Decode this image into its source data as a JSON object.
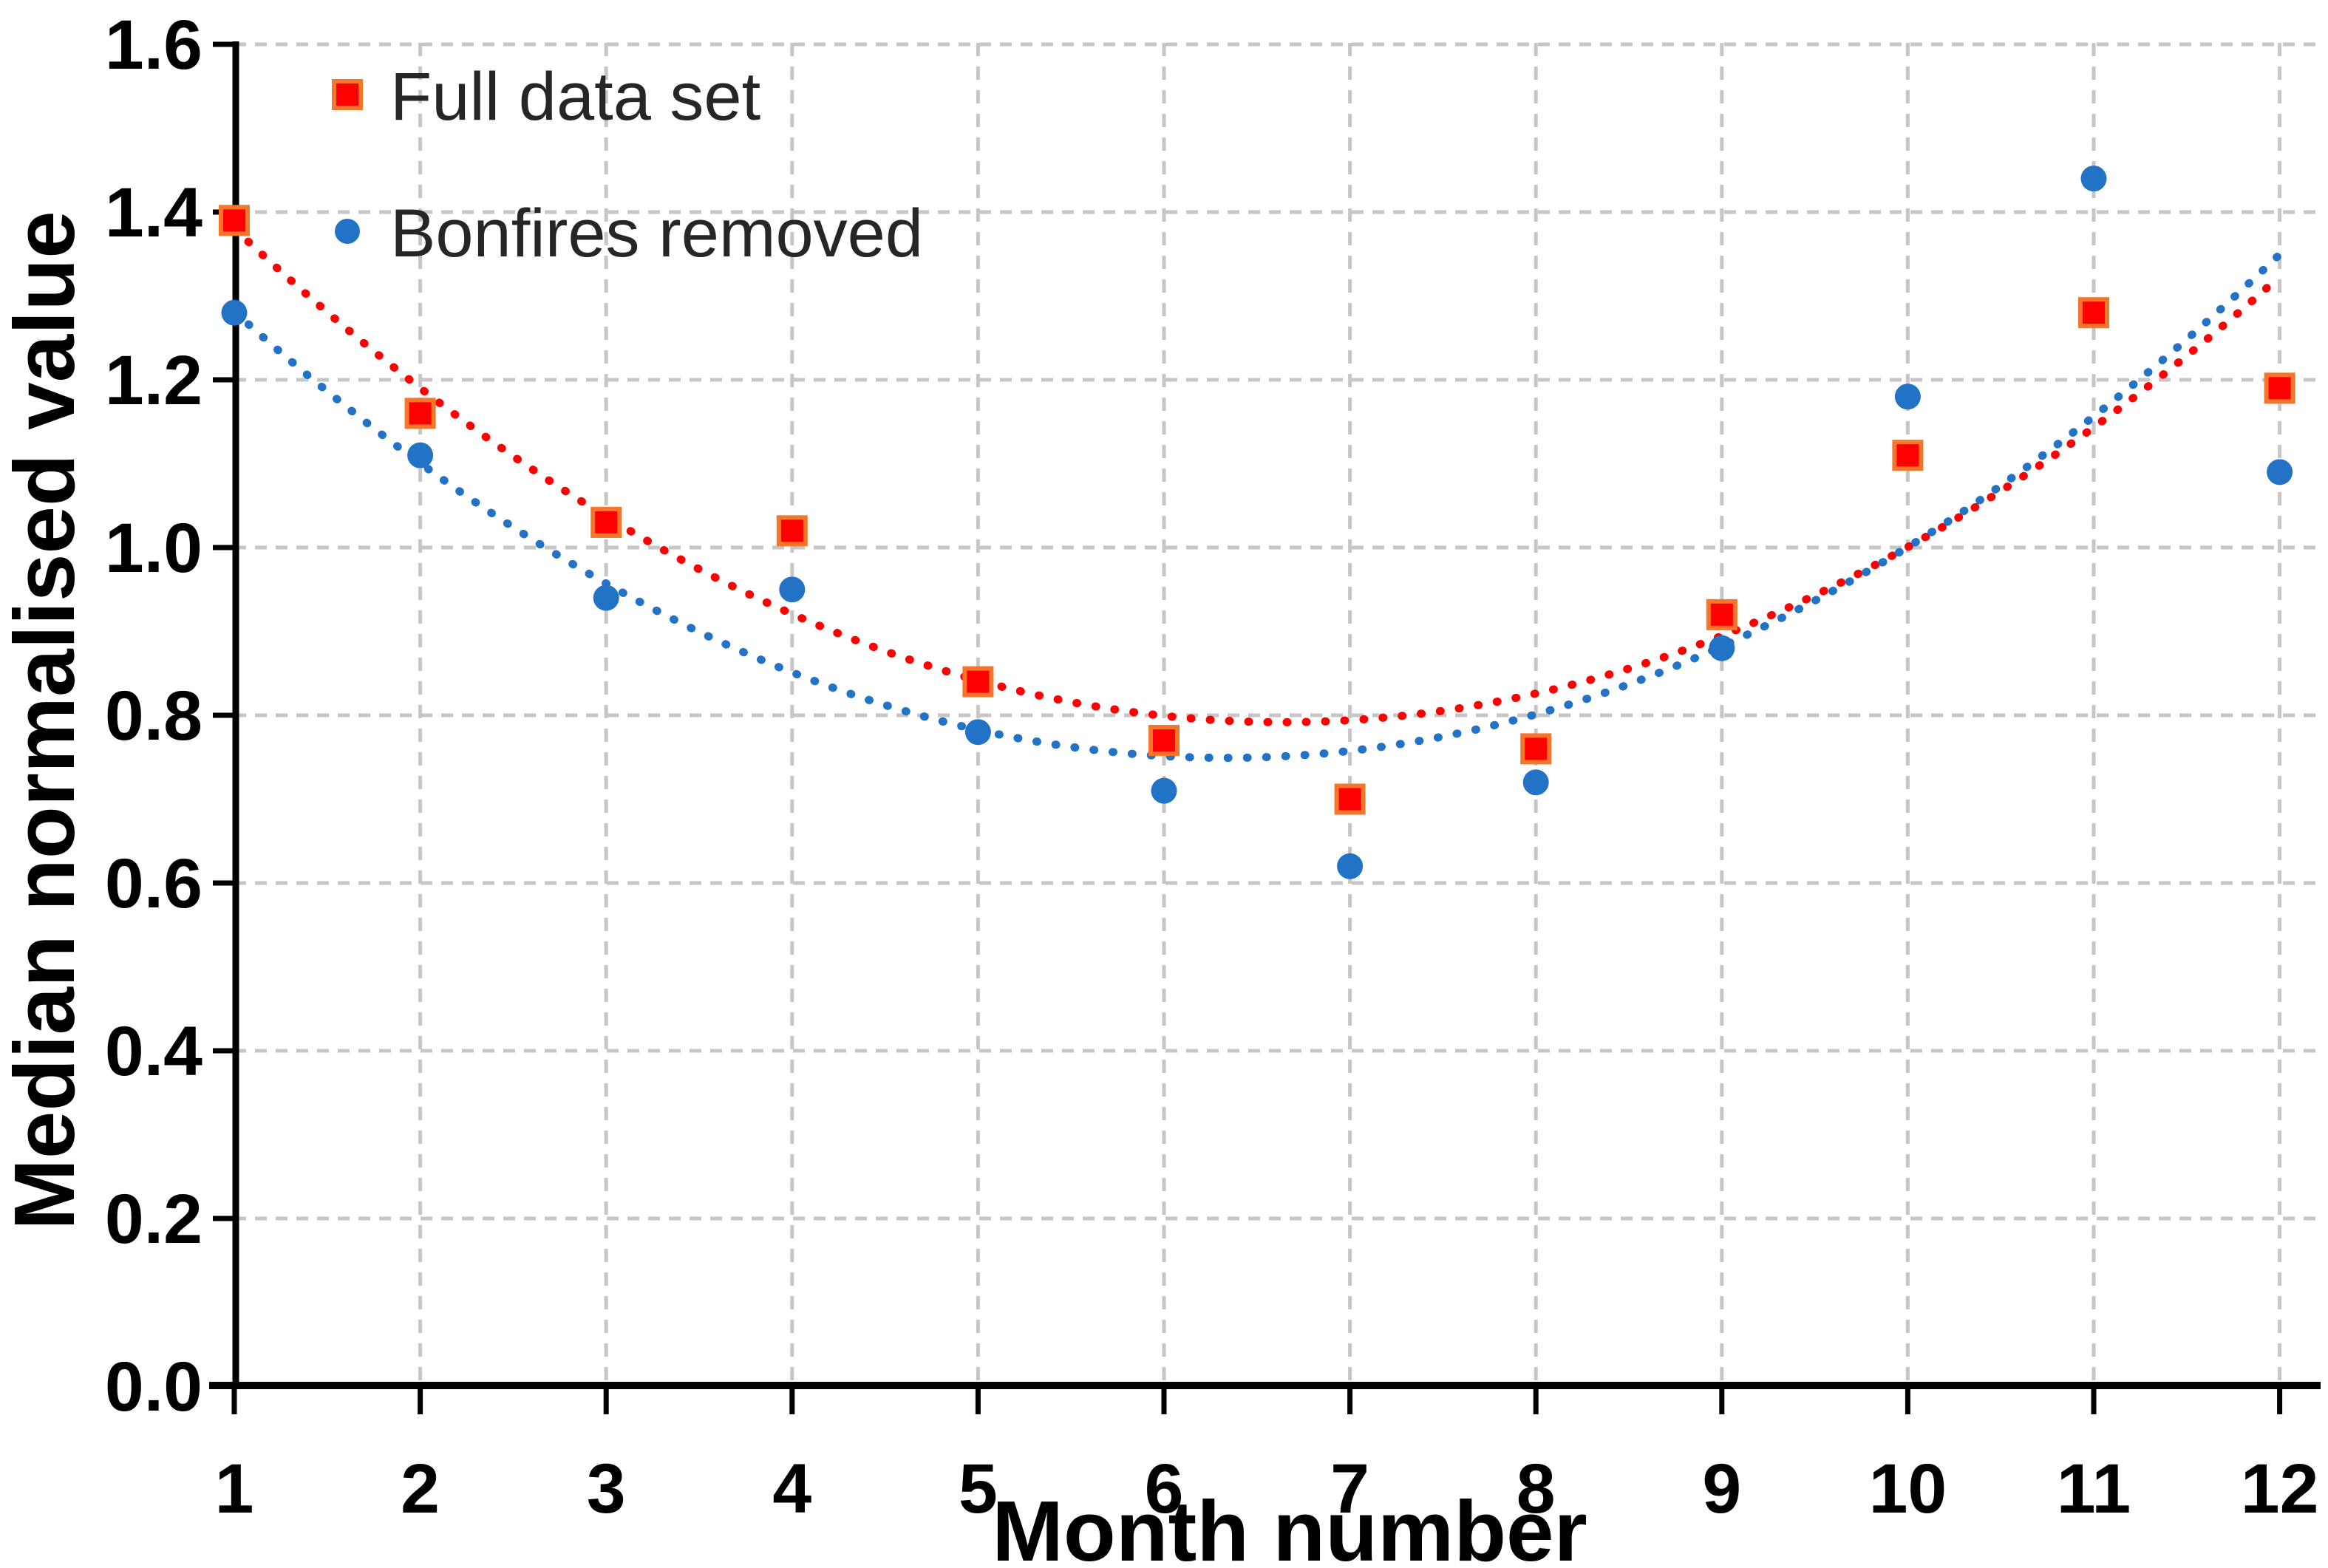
{
  "chart_data": {
    "type": "scatter",
    "title": "",
    "xlabel": "Month number",
    "ylabel": "Median normalised value",
    "x": [
      1,
      2,
      3,
      4,
      5,
      6,
      7,
      8,
      9,
      10,
      11,
      12
    ],
    "x_tick_labels": [
      "1",
      "2",
      "3",
      "4",
      "5",
      "6",
      "7",
      "8",
      "9",
      "10",
      "11",
      "12"
    ],
    "y_tick_labels": [
      "0.0",
      "0.2",
      "0.4",
      "0.6",
      "0.8",
      "1.0",
      "1.2",
      "1.4",
      "1.6"
    ],
    "xlim": [
      1,
      12
    ],
    "ylim": [
      0.0,
      1.6
    ],
    "y_major_step": 0.2,
    "grid": true,
    "legend_position": "inside-top-left",
    "series": [
      {
        "name": "Full data set",
        "marker": "square",
        "color": "#fe0000",
        "marker_border": "#f5762b",
        "values": [
          1.39,
          1.16,
          1.03,
          1.02,
          0.84,
          0.77,
          0.7,
          0.76,
          0.92,
          1.11,
          1.28,
          1.19
        ]
      },
      {
        "name": "Bonfires removed",
        "marker": "circle",
        "color": "#2272c6",
        "marker_border": "#2272c6",
        "values": [
          1.28,
          1.11,
          0.94,
          0.95,
          0.78,
          0.71,
          0.62,
          0.72,
          0.88,
          1.18,
          1.44,
          1.09
        ]
      }
    ],
    "trendlines": [
      {
        "series": "Full data set",
        "type": "polynomial",
        "order": 2,
        "coefficients": {
          "a": 0.0185,
          "b": -0.2457,
          "c": 1.6075
        },
        "style": "dotted",
        "color": "#ff0000",
        "x_range": [
          1,
          12
        ]
      },
      {
        "series": "Bonfires removed",
        "type": "polynomial",
        "order": 2,
        "coefficients": {
          "a": 0.0187,
          "b": -0.2369,
          "c": 1.4995
        },
        "style": "dotted",
        "color": "#2272c6",
        "x_range": [
          1,
          12
        ]
      }
    ]
  },
  "colors": {
    "background": "#ffffff",
    "gridline": "#c6c6c6",
    "axis": "#000000",
    "tick_text": "#000000",
    "legend_text": "#262626"
  }
}
